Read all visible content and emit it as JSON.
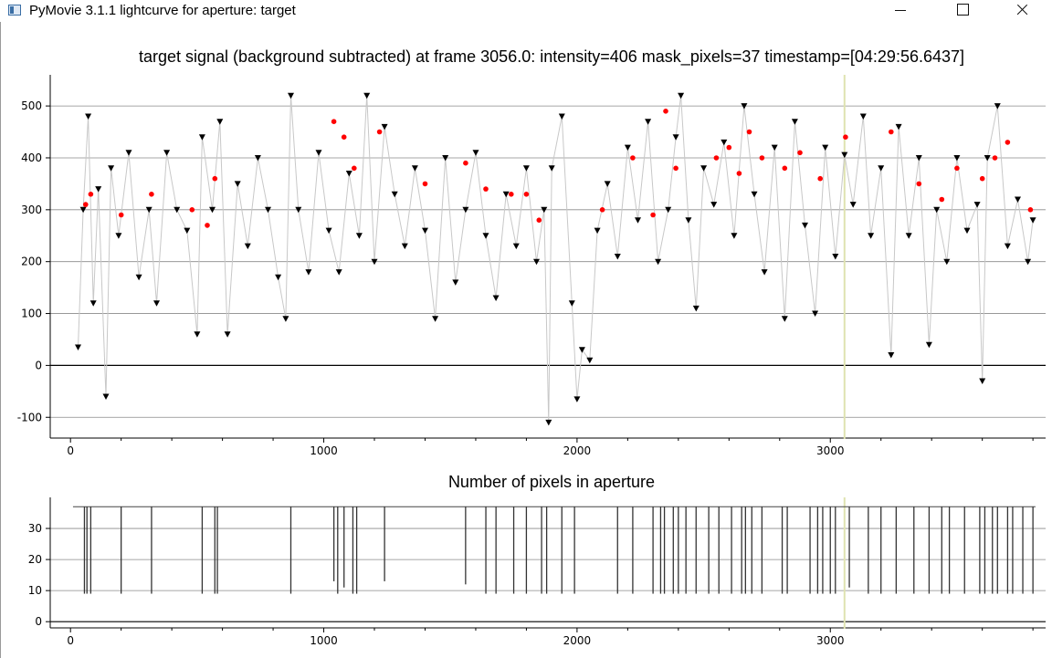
{
  "window": {
    "title": "PyMovie 3.1.1 lightcurve for aperture: target"
  },
  "main_plot": {
    "title": "target signal (background subtracted) at frame 3056.0: intensity=406 mask_pixels=37 timestamp=[04:29:56.6437]"
  },
  "sub_plot": {
    "title": "Number of pixels in aperture"
  },
  "chart_data": [
    {
      "type": "scatter",
      "title": "target signal (background subtracted) at frame 3056.0: intensity=406 mask_pixels=37 timestamp=[04:29:56.6437]",
      "xlim": [
        -80,
        3850
      ],
      "ylim": [
        -140,
        560
      ],
      "x_ticks": [
        0,
        1000,
        2000,
        3000
      ],
      "y_ticks": [
        -100,
        0,
        100,
        200,
        300,
        400,
        500
      ],
      "grid": true,
      "cursor_x": 3056,
      "series": [
        {
          "marker": "triangle-down",
          "color": "#000000",
          "connected": true,
          "line_color": "#c8c8c8",
          "points": [
            [
              30,
              35
            ],
            [
              50,
              300
            ],
            [
              70,
              480
            ],
            [
              90,
              120
            ],
            [
              110,
              340
            ],
            [
              140,
              -60
            ],
            [
              160,
              380
            ],
            [
              190,
              250
            ],
            [
              230,
              410
            ],
            [
              270,
              170
            ],
            [
              310,
              300
            ],
            [
              340,
              120
            ],
            [
              380,
              410
            ],
            [
              420,
              300
            ],
            [
              460,
              260
            ],
            [
              500,
              60
            ],
            [
              520,
              440
            ],
            [
              560,
              300
            ],
            [
              590,
              470
            ],
            [
              620,
              60
            ],
            [
              660,
              350
            ],
            [
              700,
              230
            ],
            [
              740,
              400
            ],
            [
              780,
              300
            ],
            [
              820,
              170
            ],
            [
              850,
              90
            ],
            [
              870,
              520
            ],
            [
              900,
              300
            ],
            [
              940,
              180
            ],
            [
              980,
              410
            ],
            [
              1020,
              260
            ],
            [
              1060,
              180
            ],
            [
              1100,
              370
            ],
            [
              1140,
              250
            ],
            [
              1170,
              520
            ],
            [
              1200,
              200
            ],
            [
              1240,
              460
            ],
            [
              1280,
              330
            ],
            [
              1320,
              230
            ],
            [
              1360,
              380
            ],
            [
              1400,
              260
            ],
            [
              1440,
              90
            ],
            [
              1480,
              400
            ],
            [
              1520,
              160
            ],
            [
              1560,
              300
            ],
            [
              1600,
              410
            ],
            [
              1640,
              250
            ],
            [
              1680,
              130
            ],
            [
              1720,
              330
            ],
            [
              1760,
              230
            ],
            [
              1800,
              380
            ],
            [
              1840,
              200
            ],
            [
              1870,
              300
            ],
            [
              1888,
              -110
            ],
            [
              1900,
              380
            ],
            [
              1940,
              480
            ],
            [
              1980,
              120
            ],
            [
              2000,
              -65
            ],
            [
              2020,
              30
            ],
            [
              2050,
              10
            ],
            [
              2080,
              260
            ],
            [
              2120,
              350
            ],
            [
              2160,
              210
            ],
            [
              2200,
              420
            ],
            [
              2240,
              280
            ],
            [
              2280,
              470
            ],
            [
              2320,
              200
            ],
            [
              2360,
              300
            ],
            [
              2390,
              440
            ],
            [
              2410,
              520
            ],
            [
              2440,
              280
            ],
            [
              2470,
              110
            ],
            [
              2500,
              380
            ],
            [
              2540,
              310
            ],
            [
              2580,
              430
            ],
            [
              2620,
              250
            ],
            [
              2660,
              500
            ],
            [
              2700,
              330
            ],
            [
              2740,
              180
            ],
            [
              2780,
              420
            ],
            [
              2820,
              90
            ],
            [
              2860,
              470
            ],
            [
              2900,
              270
            ],
            [
              2940,
              100
            ],
            [
              2980,
              420
            ],
            [
              3020,
              210
            ],
            [
              3056,
              406
            ],
            [
              3090,
              310
            ],
            [
              3130,
              480
            ],
            [
              3160,
              250
            ],
            [
              3200,
              380
            ],
            [
              3240,
              20
            ],
            [
              3270,
              460
            ],
            [
              3310,
              250
            ],
            [
              3350,
              400
            ],
            [
              3390,
              40
            ],
            [
              3420,
              300
            ],
            [
              3460,
              200
            ],
            [
              3500,
              400
            ],
            [
              3540,
              260
            ],
            [
              3580,
              310
            ],
            [
              3600,
              -30
            ],
            [
              3620,
              400
            ],
            [
              3660,
              500
            ],
            [
              3700,
              230
            ],
            [
              3740,
              320
            ],
            [
              3780,
              200
            ],
            [
              3800,
              280
            ]
          ]
        },
        {
          "marker": "dot",
          "color": "#ff0000",
          "points": [
            [
              60,
              310
            ],
            [
              80,
              330
            ],
            [
              200,
              290
            ],
            [
              320,
              330
            ],
            [
              480,
              300
            ],
            [
              540,
              270
            ],
            [
              570,
              360
            ],
            [
              1040,
              470
            ],
            [
              1080,
              440
            ],
            [
              1120,
              380
            ],
            [
              1220,
              450
            ],
            [
              1400,
              350
            ],
            [
              1560,
              390
            ],
            [
              1640,
              340
            ],
            [
              1740,
              330
            ],
            [
              1800,
              330
            ],
            [
              1850,
              280
            ],
            [
              2100,
              300
            ],
            [
              2220,
              400
            ],
            [
              2300,
              290
            ],
            [
              2350,
              490
            ],
            [
              2390,
              380
            ],
            [
              2550,
              400
            ],
            [
              2600,
              420
            ],
            [
              2640,
              370
            ],
            [
              2680,
              450
            ],
            [
              2730,
              400
            ],
            [
              2820,
              380
            ],
            [
              2880,
              410
            ],
            [
              2960,
              360
            ],
            [
              3060,
              440
            ],
            [
              3240,
              450
            ],
            [
              3350,
              350
            ],
            [
              3440,
              320
            ],
            [
              3500,
              380
            ],
            [
              3600,
              360
            ],
            [
              3650,
              400
            ],
            [
              3700,
              430
            ],
            [
              3790,
              300
            ]
          ]
        }
      ]
    },
    {
      "type": "line",
      "title": "Number of pixels in aperture",
      "xlim": [
        -80,
        3850
      ],
      "ylim": [
        -2,
        40
      ],
      "x_ticks": [
        0,
        1000,
        2000,
        3000
      ],
      "y_ticks": [
        0,
        10,
        20,
        30
      ],
      "grid": true,
      "cursor_x": 3056,
      "baseline": 37,
      "dips": [
        [
          55,
          9
        ],
        [
          65,
          9
        ],
        [
          80,
          9
        ],
        [
          200,
          9
        ],
        [
          320,
          9
        ],
        [
          520,
          9
        ],
        [
          570,
          9
        ],
        [
          580,
          9
        ],
        [
          870,
          9
        ],
        [
          1040,
          13
        ],
        [
          1055,
          9
        ],
        [
          1080,
          11
        ],
        [
          1115,
          9
        ],
        [
          1130,
          9
        ],
        [
          1240,
          13
        ],
        [
          1560,
          12
        ],
        [
          1640,
          9
        ],
        [
          1680,
          9
        ],
        [
          1750,
          9
        ],
        [
          1800,
          9
        ],
        [
          1860,
          9
        ],
        [
          1880,
          9
        ],
        [
          1940,
          9
        ],
        [
          1990,
          9
        ],
        [
          2160,
          9
        ],
        [
          2220,
          9
        ],
        [
          2300,
          9
        ],
        [
          2330,
          9
        ],
        [
          2345,
          9
        ],
        [
          2380,
          9
        ],
        [
          2400,
          9
        ],
        [
          2430,
          9
        ],
        [
          2470,
          9
        ],
        [
          2520,
          9
        ],
        [
          2560,
          9
        ],
        [
          2610,
          9
        ],
        [
          2650,
          9
        ],
        [
          2665,
          9
        ],
        [
          2690,
          9
        ],
        [
          2730,
          9
        ],
        [
          2810,
          9
        ],
        [
          2830,
          9
        ],
        [
          2920,
          9
        ],
        [
          2950,
          9
        ],
        [
          2970,
          9
        ],
        [
          3000,
          9
        ],
        [
          3020,
          9
        ],
        [
          3075,
          11
        ],
        [
          3150,
          9
        ],
        [
          3200,
          9
        ],
        [
          3260,
          9
        ],
        [
          3330,
          9
        ],
        [
          3390,
          9
        ],
        [
          3440,
          9
        ],
        [
          3470,
          9
        ],
        [
          3530,
          9
        ],
        [
          3590,
          9
        ],
        [
          3610,
          9
        ],
        [
          3640,
          9
        ],
        [
          3660,
          9
        ],
        [
          3700,
          9
        ],
        [
          3720,
          9
        ],
        [
          3760,
          9
        ],
        [
          3800,
          9
        ]
      ]
    }
  ]
}
